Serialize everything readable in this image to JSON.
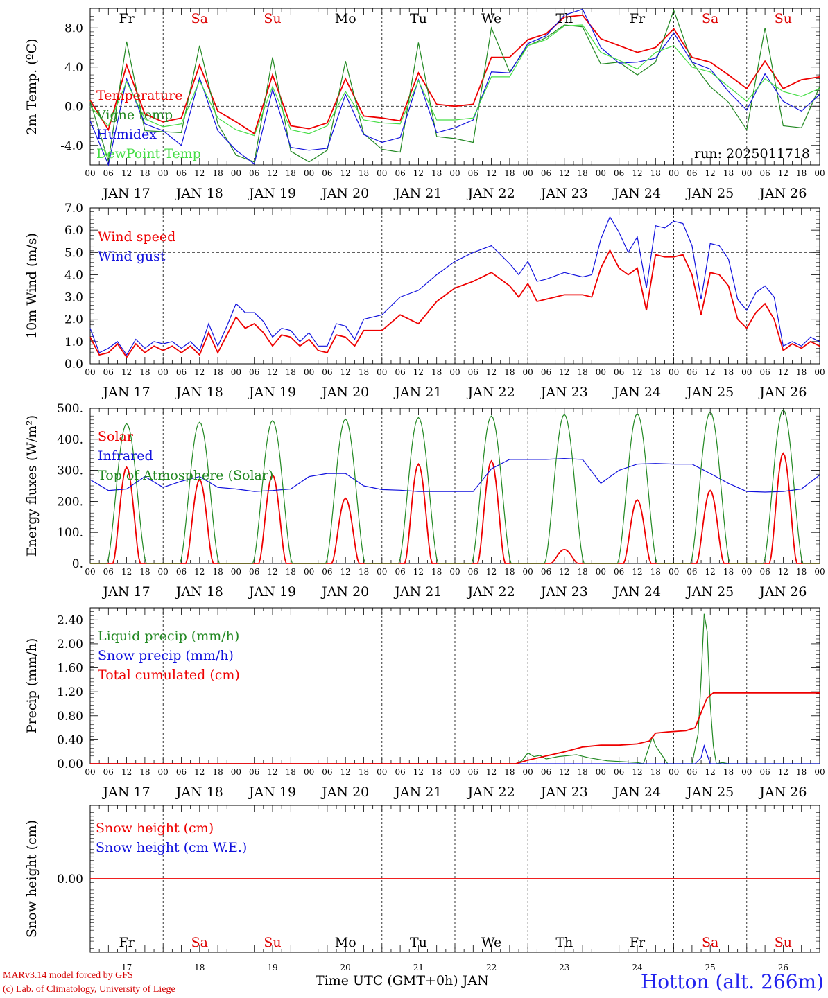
{
  "run_label": "run: 2025011718",
  "days": [
    {
      "abbr": "Fr",
      "date": "17",
      "color": "#000000"
    },
    {
      "abbr": "Sa",
      "date": "18",
      "color": "#dd0000"
    },
    {
      "abbr": "Su",
      "date": "19",
      "color": "#dd0000"
    },
    {
      "abbr": "Mo",
      "date": "20",
      "color": "#000000"
    },
    {
      "abbr": "Tu",
      "date": "21",
      "color": "#000000"
    },
    {
      "abbr": "We",
      "date": "22",
      "color": "#000000"
    },
    {
      "abbr": "Th",
      "date": "23",
      "color": "#000000"
    },
    {
      "abbr": "Fr",
      "date": "24",
      "color": "#000000"
    },
    {
      "abbr": "Sa",
      "date": "25",
      "color": "#dd0000"
    },
    {
      "abbr": "Su",
      "date": "26",
      "color": "#dd0000"
    }
  ],
  "day_labels": [
    "JAN 17",
    "JAN 18",
    "JAN 19",
    "JAN 20",
    "JAN 21",
    "JAN 22",
    "JAN 23",
    "JAN 24",
    "JAN 25",
    "JAN 26"
  ],
  "hour_ticks": [
    "00",
    "06",
    "12",
    "18"
  ],
  "footer": {
    "model": "MARv3.14 model forced by GFS",
    "lab": "(c) Lab. of Climatology, University of Liege",
    "xlabel": "Time UTC (GMT+0h) JAN",
    "station": "Hotton (alt. 266m)"
  },
  "colors": {
    "red": "#ee0000",
    "green": "#228822",
    "blue": "#1111dd",
    "lightgreen": "#44dd44"
  },
  "chart_data": [
    {
      "type": "line",
      "ylabel": "2m Temp. (ºC)",
      "ylim": [
        -6,
        10
      ],
      "yticks": [
        "8.0",
        "4.0",
        "0.0",
        "-4.0"
      ],
      "ytick_values": [
        8,
        4,
        0,
        -4
      ],
      "ref_line": 0,
      "x_unit": "hours since Jan 17 00 UTC",
      "series": [
        {
          "name": "Temperature",
          "color": "red",
          "x": [
            0,
            6,
            12,
            18,
            24,
            30,
            36,
            42,
            48,
            54,
            60,
            66,
            72,
            78,
            84,
            90,
            96,
            102,
            108,
            114,
            120,
            126,
            132,
            138,
            144,
            150,
            156,
            162,
            168,
            174,
            180,
            186,
            192,
            198,
            204,
            210,
            216,
            222,
            228,
            234,
            240
          ],
          "y": [
            0.6,
            -2.4,
            4.2,
            -0.8,
            -1.6,
            -1.2,
            4.2,
            -0.5,
            -1.6,
            -2.8,
            3.2,
            -2.0,
            -2.3,
            -1.7,
            2.8,
            -1.0,
            -1.2,
            -1.5,
            3.4,
            0.2,
            0.0,
            0.2,
            5.0,
            5.0,
            6.8,
            7.4,
            9.1,
            9.3,
            6.9,
            6.2,
            5.5,
            6.0,
            7.9,
            5.0,
            4.5,
            3.2,
            1.8,
            4.6,
            1.8,
            2.7,
            3.0
          ]
        },
        {
          "name": "Vigne temp",
          "color": "green",
          "x": [
            0,
            6,
            12,
            18,
            24,
            30,
            36,
            42,
            48,
            54,
            60,
            66,
            72,
            78,
            84,
            90,
            96,
            102,
            108,
            114,
            120,
            126,
            132,
            138,
            144,
            150,
            156,
            162,
            168,
            174,
            180,
            186,
            192,
            198,
            204,
            210,
            216,
            222,
            228,
            234,
            240
          ],
          "y": [
            0.5,
            -5.6,
            6.6,
            -2.5,
            -2.6,
            -2.7,
            6.2,
            -1.8,
            -5.0,
            -5.7,
            5.0,
            -4.6,
            -5.7,
            -4.5,
            4.6,
            -2.8,
            -4.4,
            -4.7,
            6.5,
            -3.1,
            -3.3,
            -3.7,
            8.0,
            3.5,
            6.2,
            7.0,
            8.3,
            8.1,
            4.3,
            4.5,
            3.2,
            4.5,
            9.8,
            4.5,
            2.0,
            0.4,
            -2.4,
            8.0,
            -2.0,
            -2.2,
            2.0
          ]
        },
        {
          "name": "Humidex",
          "color": "blue",
          "x": [
            0,
            6,
            12,
            18,
            24,
            30,
            36,
            42,
            48,
            54,
            60,
            66,
            72,
            78,
            84,
            90,
            96,
            102,
            108,
            114,
            120,
            126,
            132,
            138,
            144,
            150,
            156,
            162,
            168,
            174,
            180,
            186,
            192,
            198,
            204,
            210,
            216,
            222,
            228,
            234,
            240
          ],
          "y": [
            -1.5,
            -6.0,
            2.8,
            -1.8,
            -2.5,
            -4.0,
            2.9,
            -2.5,
            -4.5,
            -5.9,
            1.7,
            -4.2,
            -4.5,
            -4.3,
            1.2,
            -2.9,
            -3.7,
            -3.2,
            2.7,
            -2.7,
            -2.2,
            -1.4,
            3.5,
            3.4,
            6.4,
            7.2,
            9.3,
            9.9,
            6.0,
            4.4,
            4.5,
            4.9,
            7.5,
            4.5,
            3.8,
            1.5,
            -0.4,
            3.3,
            0.5,
            -0.5,
            1.2
          ]
        },
        {
          "name": "DewPoint Temp",
          "color": "lightgreen",
          "x": [
            0,
            6,
            12,
            18,
            24,
            30,
            36,
            42,
            48,
            54,
            60,
            66,
            72,
            78,
            84,
            90,
            96,
            102,
            108,
            114,
            120,
            126,
            132,
            138,
            144,
            150,
            156,
            162,
            168,
            174,
            180,
            186,
            192,
            198,
            204,
            210,
            216,
            222,
            228,
            234,
            240
          ],
          "y": [
            0.0,
            -2.0,
            2.5,
            -1.3,
            -2.1,
            -1.8,
            2.6,
            -1.2,
            -2.4,
            -3.0,
            2.0,
            -2.4,
            -2.8,
            -2.0,
            1.5,
            -1.4,
            -1.7,
            -1.8,
            2.6,
            -1.4,
            -1.4,
            -1.2,
            3.0,
            3.0,
            6.2,
            6.8,
            8.2,
            8.3,
            5.5,
            4.7,
            3.8,
            5.5,
            6.2,
            4.0,
            3.5,
            2.0,
            0.5,
            2.8,
            1.5,
            1.0,
            1.8
          ]
        }
      ]
    },
    {
      "type": "line",
      "ylabel": "10m Wind (m/s)",
      "ylim": [
        0,
        7
      ],
      "yticks": [
        "7.0",
        "6.0",
        "5.0",
        "4.0",
        "3.0",
        "2.0",
        "1.0",
        "0.0"
      ],
      "ytick_values": [
        7,
        6,
        5,
        4,
        3,
        2,
        1,
        0
      ],
      "ref_line": 5,
      "x_unit": "hours since Jan 17 00 UTC",
      "series": [
        {
          "name": "Wind speed",
          "color": "red",
          "x": [
            0,
            3,
            6,
            9,
            12,
            15,
            18,
            21,
            24,
            27,
            30,
            33,
            36,
            39,
            42,
            45,
            48,
            51,
            54,
            57,
            60,
            63,
            66,
            69,
            72,
            75,
            78,
            81,
            84,
            87,
            90,
            96,
            102,
            108,
            114,
            120,
            126,
            132,
            138,
            141,
            144,
            147,
            150,
            156,
            162,
            165,
            168,
            171,
            174,
            177,
            180,
            183,
            186,
            189,
            192,
            195,
            198,
            201,
            204,
            207,
            210,
            213,
            216,
            219,
            222,
            225,
            228,
            231,
            234,
            237,
            240
          ],
          "y": [
            1.2,
            0.4,
            0.5,
            0.9,
            0.3,
            0.9,
            0.5,
            0.8,
            0.6,
            0.8,
            0.5,
            0.8,
            0.4,
            1.4,
            0.5,
            1.3,
            2.1,
            1.6,
            1.8,
            1.4,
            0.8,
            1.3,
            1.2,
            0.8,
            1.1,
            0.6,
            0.5,
            1.3,
            1.2,
            0.8,
            1.5,
            1.5,
            2.2,
            1.8,
            2.8,
            3.4,
            3.7,
            4.1,
            3.5,
            3.0,
            3.6,
            2.8,
            2.9,
            3.1,
            3.1,
            3.0,
            4.3,
            5.1,
            4.3,
            4.0,
            4.3,
            2.4,
            4.9,
            4.8,
            4.8,
            4.9,
            4.0,
            2.2,
            4.1,
            4.0,
            3.5,
            2.0,
            1.6,
            2.3,
            2.7,
            2.0,
            0.6,
            0.9,
            0.7,
            1.0,
            0.8
          ]
        },
        {
          "name": "Wind gust",
          "color": "blue",
          "x": [
            0,
            3,
            6,
            9,
            12,
            15,
            18,
            21,
            24,
            27,
            30,
            33,
            36,
            39,
            42,
            45,
            48,
            51,
            54,
            57,
            60,
            63,
            66,
            69,
            72,
            75,
            78,
            81,
            84,
            87,
            90,
            96,
            102,
            108,
            114,
            120,
            126,
            132,
            138,
            141,
            144,
            147,
            150,
            156,
            162,
            165,
            168,
            171,
            174,
            177,
            180,
            183,
            186,
            189,
            192,
            195,
            198,
            201,
            204,
            207,
            210,
            213,
            216,
            219,
            222,
            225,
            228,
            231,
            234,
            237,
            240
          ],
          "y": [
            1.6,
            0.5,
            0.7,
            1.0,
            0.4,
            1.1,
            0.7,
            1.0,
            0.9,
            1.0,
            0.7,
            1.0,
            0.6,
            1.8,
            0.8,
            1.7,
            2.7,
            2.3,
            2.3,
            1.9,
            1.2,
            1.6,
            1.5,
            1.0,
            1.4,
            0.8,
            0.8,
            1.8,
            1.7,
            1.1,
            2.0,
            2.2,
            3.0,
            3.3,
            4.0,
            4.6,
            5.0,
            5.3,
            4.5,
            4.0,
            4.6,
            3.7,
            3.8,
            4.1,
            3.9,
            4.0,
            5.6,
            6.6,
            5.9,
            5.0,
            5.7,
            3.4,
            6.2,
            6.1,
            6.4,
            6.3,
            5.3,
            2.9,
            5.4,
            5.3,
            4.7,
            2.9,
            2.4,
            3.2,
            3.5,
            3.0,
            0.8,
            1.0,
            0.8,
            1.2,
            1.0
          ]
        }
      ]
    },
    {
      "type": "line",
      "ylabel": "Energy fluxes (W/m²)",
      "ylim": [
        0,
        500
      ],
      "yticks": [
        "500.",
        "400.",
        "300.",
        "200.",
        "100.",
        "0."
      ],
      "ytick_values": [
        500,
        400,
        300,
        200,
        100,
        0
      ],
      "ref_line": null,
      "x_unit": "hours since Jan 17 00 UTC",
      "series": [
        {
          "name": "Solar",
          "color": "red",
          "noon_peaks": [
            310,
            270,
            285,
            210,
            320,
            330,
            45,
            205,
            235,
            355
          ]
        },
        {
          "name": "Infrared",
          "color": "blue",
          "x": [
            0,
            6,
            12,
            18,
            24,
            30,
            36,
            42,
            48,
            54,
            60,
            66,
            72,
            78,
            84,
            90,
            96,
            102,
            108,
            114,
            120,
            126,
            132,
            138,
            144,
            150,
            156,
            162,
            168,
            174,
            180,
            186,
            192,
            198,
            204,
            210,
            216,
            222,
            228,
            234,
            240
          ],
          "y": [
            270,
            235,
            240,
            280,
            245,
            265,
            280,
            245,
            240,
            232,
            235,
            240,
            280,
            290,
            290,
            250,
            238,
            236,
            232,
            232,
            232,
            232,
            305,
            335,
            335,
            335,
            338,
            335,
            258,
            300,
            320,
            322,
            320,
            320,
            290,
            258,
            232,
            230,
            232,
            240,
            285
          ]
        },
        {
          "name": "Top of Atmosphere (Solar)",
          "color": "green",
          "noon_peaks": [
            450,
            455,
            460,
            465,
            470,
            475,
            480,
            482,
            488,
            495
          ]
        }
      ]
    },
    {
      "type": "line",
      "ylabel": "Precip (mm/h)",
      "ylim": [
        0,
        2.6
      ],
      "yticks": [
        "2.40",
        "2.00",
        "1.60",
        "1.20",
        "0.80",
        "0.40",
        "0.00"
      ],
      "ytick_values": [
        2.4,
        2.0,
        1.6,
        1.2,
        0.8,
        0.4,
        0.0
      ],
      "ref_line": null,
      "x_unit": "hours since Jan 17 00 UTC",
      "series": [
        {
          "name": "Liquid precip (mm/h)",
          "color": "green",
          "x": [
            0,
            140,
            142,
            144,
            146,
            148,
            150,
            154,
            160,
            164,
            170,
            180,
            182,
            184,
            185,
            186,
            190,
            198,
            200,
            201,
            202,
            203,
            204,
            205,
            206,
            208,
            210,
            240
          ],
          "y": [
            0,
            0,
            0.05,
            0.18,
            0.12,
            0.14,
            0.08,
            0.12,
            0.15,
            0.1,
            0.05,
            0.02,
            0.0,
            0.3,
            0.45,
            0.3,
            0.0,
            0.0,
            0.5,
            1.4,
            2.5,
            2.2,
            1.0,
            0.3,
            0.0,
            0.02,
            0.0,
            0.0
          ]
        },
        {
          "name": "Snow precip (mm/h)",
          "color": "blue",
          "x": [
            0,
            199,
            201,
            202,
            203,
            204,
            240
          ],
          "y": [
            0,
            0,
            0.1,
            0.3,
            0.15,
            0.0,
            0.0
          ]
        },
        {
          "name": "Total cumulated (cm)",
          "color": "red",
          "x": [
            0,
            140,
            144,
            150,
            156,
            162,
            168,
            174,
            180,
            184,
            186,
            190,
            196,
            199,
            201,
            203,
            205,
            207,
            210,
            240
          ],
          "y": [
            0,
            0,
            0.06,
            0.13,
            0.2,
            0.28,
            0.31,
            0.31,
            0.33,
            0.38,
            0.51,
            0.53,
            0.55,
            0.6,
            0.85,
            1.1,
            1.18,
            1.18,
            1.18,
            1.18
          ]
        }
      ]
    },
    {
      "type": "line",
      "ylabel": "Snow height (cm)",
      "ylim": [
        -1,
        1
      ],
      "yticks": [
        "0.00"
      ],
      "ytick_values": [
        0
      ],
      "ref_line": null,
      "x_unit": "hours since Jan 17 00 UTC",
      "series": [
        {
          "name": "Snow height (cm)",
          "color": "red",
          "x": [
            0,
            240
          ],
          "y": [
            0,
            0
          ]
        },
        {
          "name": "Snow height (cm W.E.)",
          "color": "blue",
          "x": [],
          "y": []
        }
      ]
    }
  ]
}
